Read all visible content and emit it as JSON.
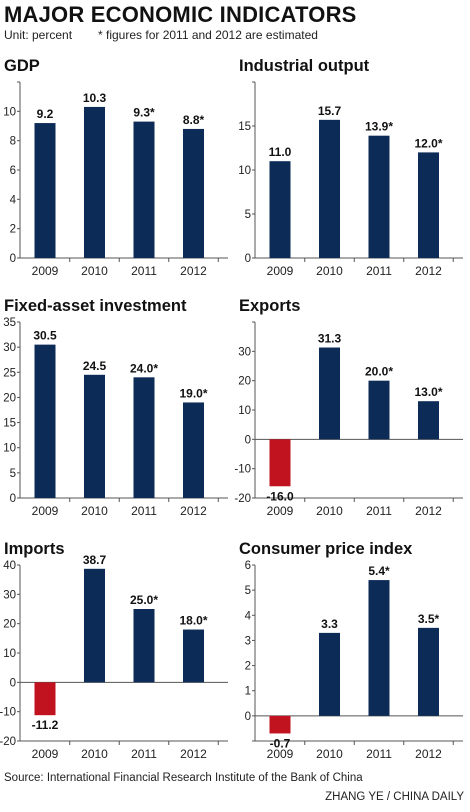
{
  "header": {
    "title": "MAJOR ECONOMIC INDICATORS",
    "unit": "Unit: percent",
    "note": "* figures for 2011 and 2012 are estimated"
  },
  "footer": {
    "source": "Source: International Financial Research Institute of the Bank of China",
    "credit": "ZHANG YE / CHINA DAILY"
  },
  "colors": {
    "positive": "#0d2b57",
    "negative": "#c1121f",
    "axis": "#555555",
    "bg": "#ffffff"
  },
  "chart_data": [
    {
      "type": "bar",
      "title": "GDP",
      "categories": [
        "2009",
        "2010",
        "2011",
        "2012"
      ],
      "values": [
        9.2,
        10.3,
        9.3,
        8.8
      ],
      "labels": [
        "9.2",
        "10.3",
        "9.3*",
        "8.8*"
      ],
      "ylim": [
        0,
        12
      ],
      "yticks": [
        0,
        2,
        4,
        6,
        8,
        10,
        12
      ],
      "ytick_labels": [
        "0",
        "2",
        "4",
        "6",
        "8",
        "10",
        ""
      ]
    },
    {
      "type": "bar",
      "title": "Industrial output",
      "categories": [
        "2009",
        "2010",
        "2011",
        "2012"
      ],
      "values": [
        11.0,
        15.7,
        13.9,
        12.0
      ],
      "labels": [
        "11.0",
        "15.7",
        "13.9*",
        "12.0*"
      ],
      "ylim": [
        0,
        20
      ],
      "yticks": [
        0,
        5,
        10,
        15,
        20
      ],
      "ytick_labels": [
        "0",
        "5",
        "10",
        "15",
        ""
      ]
    },
    {
      "type": "bar",
      "title": "Fixed-asset investment",
      "categories": [
        "2009",
        "2010",
        "2011",
        "2012"
      ],
      "values": [
        30.5,
        24.5,
        24.0,
        19.0
      ],
      "labels": [
        "30.5",
        "24.5",
        "24.0*",
        "19.0*"
      ],
      "ylim": [
        0,
        35
      ],
      "yticks": [
        0,
        5,
        10,
        15,
        20,
        25,
        30,
        35
      ],
      "ytick_labels": [
        "0",
        "5",
        "10",
        "15",
        "20",
        "25",
        "30",
        "35"
      ]
    },
    {
      "type": "bar",
      "title": "Exports",
      "categories": [
        "2009",
        "2010",
        "2011",
        "2012"
      ],
      "values": [
        -16.0,
        31.3,
        20.0,
        13.0
      ],
      "labels": [
        "-16.0",
        "31.3",
        "20.0*",
        "13.0*"
      ],
      "ylim": [
        -20,
        40
      ],
      "yticks": [
        -20,
        -10,
        0,
        10,
        20,
        30,
        40
      ],
      "ytick_labels": [
        "-20",
        "-10",
        "0",
        "10",
        "20",
        "30",
        ""
      ]
    },
    {
      "type": "bar",
      "title": "Imports",
      "categories": [
        "2009",
        "2010",
        "2011",
        "2012"
      ],
      "values": [
        -11.2,
        38.7,
        25.0,
        18.0
      ],
      "labels": [
        "-11.2",
        "38.7",
        "25.0*",
        "18.0*"
      ],
      "ylim": [
        -20,
        40
      ],
      "yticks": [
        -20,
        -10,
        0,
        10,
        20,
        30,
        40
      ],
      "ytick_labels": [
        "-20",
        "-10",
        "0",
        "10",
        "20",
        "30",
        "40"
      ]
    },
    {
      "type": "bar",
      "title": "Consumer price index",
      "categories": [
        "2009",
        "2010",
        "2011",
        "2012"
      ],
      "values": [
        -0.7,
        3.3,
        5.4,
        3.5
      ],
      "labels": [
        "-0.7",
        "3.3",
        "5.4*",
        "3.5*"
      ],
      "ylim": [
        -1,
        6
      ],
      "yticks": [
        -1,
        0,
        1,
        2,
        3,
        4,
        5,
        6
      ],
      "ytick_labels": [
        "",
        "0",
        "1",
        "2",
        "3",
        "4",
        "5",
        "6"
      ]
    }
  ]
}
